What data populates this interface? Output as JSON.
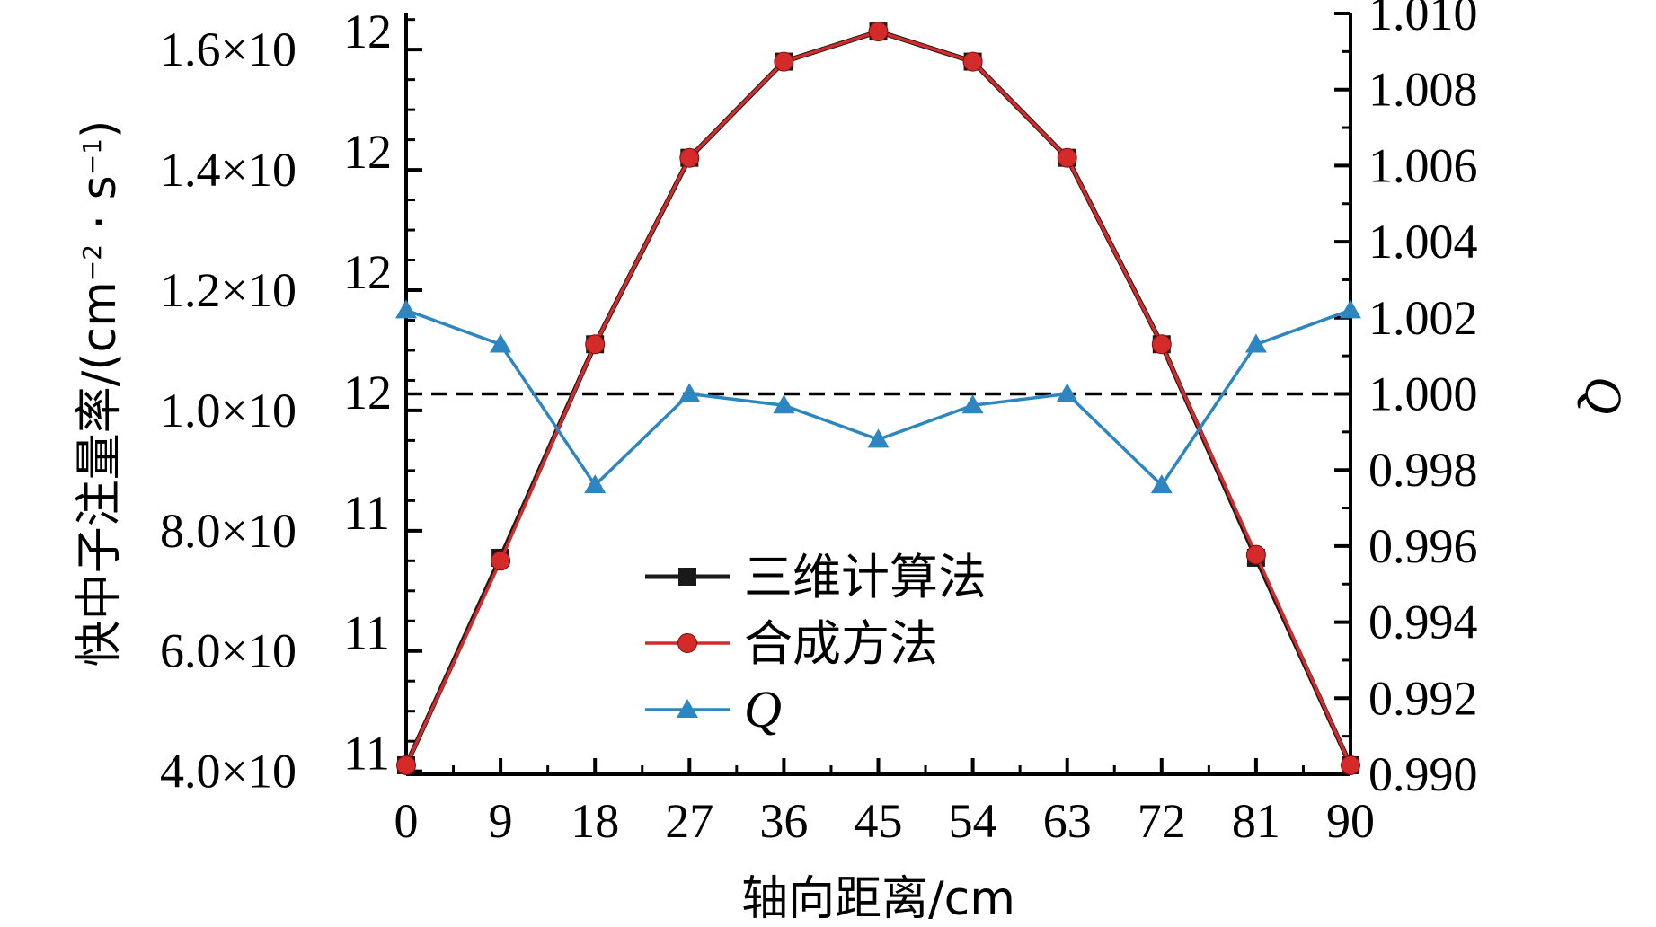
{
  "chart_data": {
    "type": "line",
    "xlabel": "轴向距离/cm",
    "ylabel_left": "快中子注量率/(cm",
    "ylabel_left_exp1": "−2",
    "ylabel_left_mid": " · s",
    "ylabel_left_exp2": "−1",
    "ylabel_left_end": ")",
    "ylabel_right": "Q",
    "x": [
      0,
      9,
      18,
      27,
      36,
      45,
      54,
      63,
      72,
      81,
      90
    ],
    "x_ticks": [
      "0",
      "9",
      "18",
      "27",
      "36",
      "45",
      "54",
      "63",
      "72",
      "81",
      "90"
    ],
    "xlim": [
      0,
      90
    ],
    "ylim_left": [
      395000000000.0,
      1660000000000.0
    ],
    "ylim_right": [
      0.99,
      1.01
    ],
    "y_ticks_left": [
      {
        "value": 400000000000.0,
        "mantissa": "4.0×10",
        "exp": "11"
      },
      {
        "value": 600000000000.0,
        "mantissa": "6.0×10",
        "exp": "11"
      },
      {
        "value": 800000000000.0,
        "mantissa": "8.0×10",
        "exp": "11"
      },
      {
        "value": 1000000000000.0,
        "mantissa": "1.0×10",
        "exp": "12"
      },
      {
        "value": 1200000000000.0,
        "mantissa": "1.2×10",
        "exp": "12"
      },
      {
        "value": 1400000000000.0,
        "mantissa": "1.4×10",
        "exp": "12"
      },
      {
        "value": 1600000000000.0,
        "mantissa": "1.6×10",
        "exp": "12"
      }
    ],
    "y_ticks_right": [
      "0.990",
      "0.992",
      "0.994",
      "0.996",
      "0.998",
      "1.000",
      "1.002",
      "1.004",
      "1.006",
      "1.008",
      "1.010"
    ],
    "reference_line": {
      "axis": "right",
      "value": 1.0,
      "style": "dashed"
    },
    "series": [
      {
        "name": "三维计算法",
        "axis": "left",
        "marker": "square",
        "color": "#1a1a1a",
        "values": [
          410000000000.0,
          755000000000.0,
          1110000000000.0,
          1420000000000.0,
          1580000000000.0,
          1630000000000.0,
          1580000000000.0,
          1420000000000.0,
          1110000000000.0,
          755000000000.0,
          410000000000.0
        ]
      },
      {
        "name": "合成方法",
        "axis": "left",
        "marker": "circle",
        "color": "#d42a2a",
        "values": [
          410000000000.0,
          750000000000.0,
          1110000000000.0,
          1420000000000.0,
          1580000000000.0,
          1630000000000.0,
          1580000000000.0,
          1420000000000.0,
          1110000000000.0,
          760000000000.0,
          410000000000.0
        ]
      },
      {
        "name": "Q",
        "axis": "right",
        "marker": "triangle",
        "color": "#2e86c1",
        "values": [
          1.0022,
          1.0013,
          0.9976,
          1.0,
          0.9997,
          0.9988,
          0.9997,
          1.0,
          0.9976,
          1.0013,
          1.0022
        ]
      }
    ],
    "legend": {
      "position": "lower-center"
    }
  }
}
